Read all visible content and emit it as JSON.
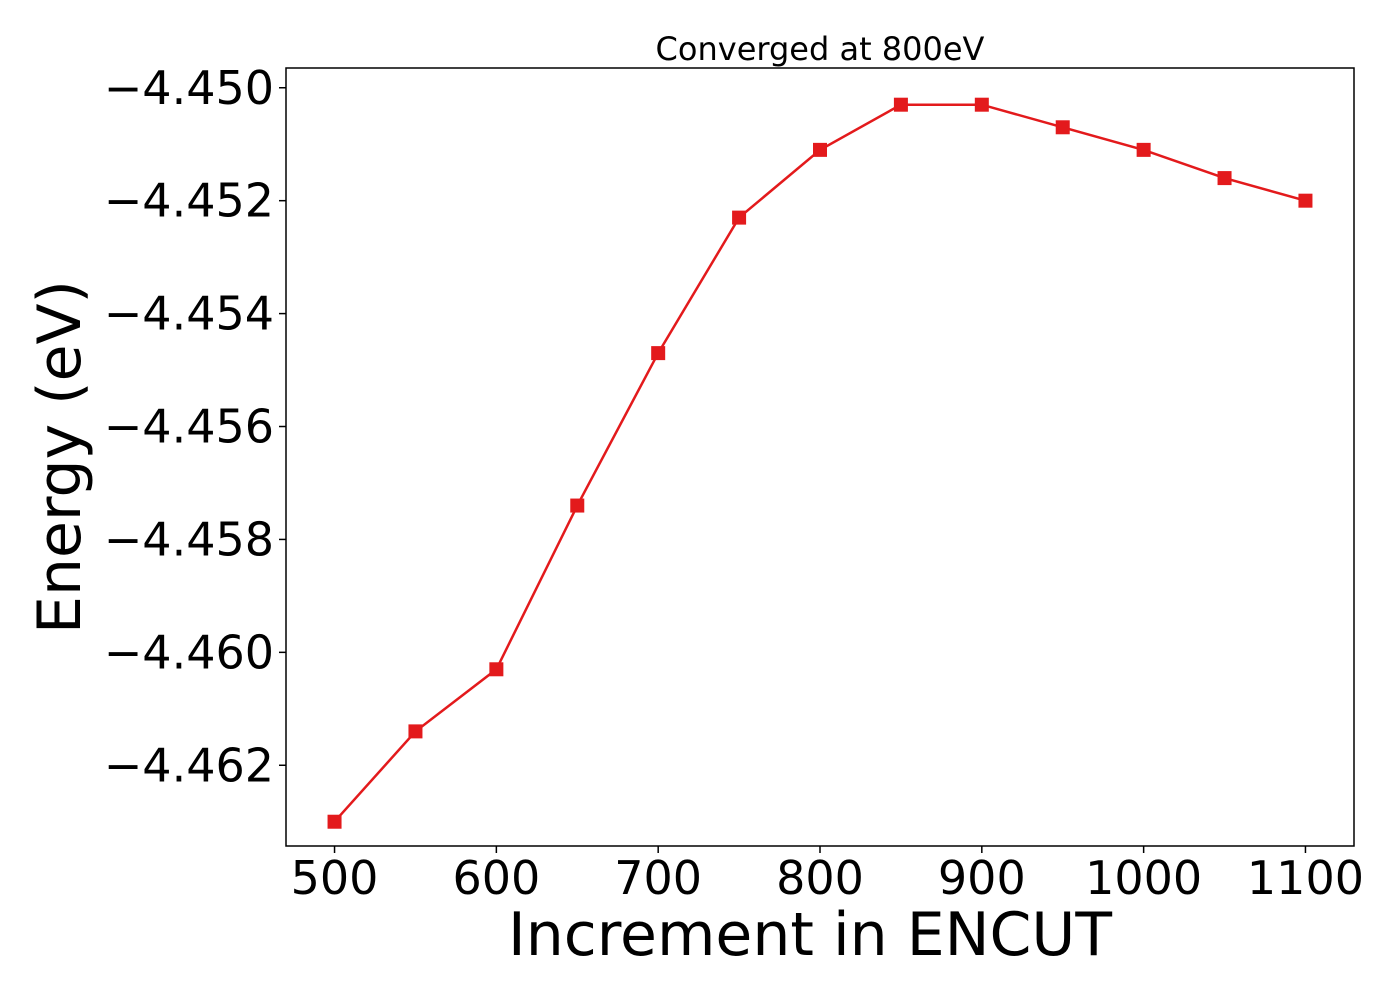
{
  "chart_data": {
    "type": "line",
    "title": "Converged at 800eV",
    "xlabel": "Increment in ENCUT",
    "ylabel": "Energy (eV)",
    "xlim": [
      470,
      1130
    ],
    "ylim": [
      -4.46343,
      -4.44965
    ],
    "xticks": [
      500,
      600,
      700,
      800,
      900,
      1000,
      1100
    ],
    "xtick_labels": [
      "500",
      "600",
      "700",
      "800",
      "900",
      "1000",
      "1100"
    ],
    "yticks": [
      -4.45,
      -4.452,
      -4.454,
      -4.456,
      -4.458,
      -4.46,
      -4.462
    ],
    "ytick_labels": [
      "−4.450",
      "−4.452",
      "−4.454",
      "−4.456",
      "−4.458",
      "−4.460",
      "−4.462"
    ],
    "grid": false,
    "legend": "none",
    "series": [
      {
        "color": "#e31a1c",
        "marker": "square",
        "x": [
          500,
          550,
          600,
          650,
          700,
          750,
          800,
          850,
          900,
          950,
          1000,
          1050,
          1100
        ],
        "y": [
          -4.463,
          -4.4614,
          -4.4603,
          -4.4574,
          -4.4547,
          -4.4523,
          -4.4511,
          -4.4503,
          -4.4503,
          -4.4507,
          -4.4511,
          -4.4516,
          -4.452
        ]
      }
    ]
  }
}
